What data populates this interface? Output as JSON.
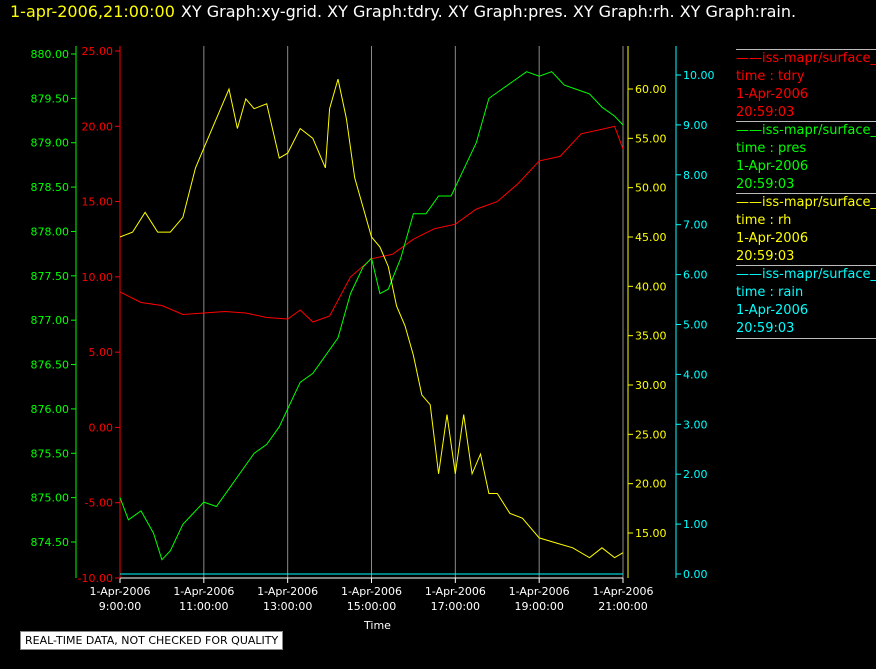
{
  "header": {
    "timestamp": "1-apr-2006,21:00:00",
    "titles": "XY Graph:xy-grid.  XY Graph:tdry.  XY Graph:pres.  XY Graph:rh.  XY Graph:rain."
  },
  "note": "REAL-TIME DATA, NOT CHECKED FOR QUALITY",
  "chart_data": {
    "type": "line",
    "xlabel": "Time",
    "x_ticks": [
      {
        "date": "1-Apr-2006",
        "time": "9:00:00"
      },
      {
        "date": "1-Apr-2006",
        "time": "11:00:00"
      },
      {
        "date": "1-Apr-2006",
        "time": "13:00:00"
      },
      {
        "date": "1-Apr-2006",
        "time": "15:00:00"
      },
      {
        "date": "1-Apr-2006",
        "time": "17:00:00"
      },
      {
        "date": "1-Apr-2006",
        "time": "19:00:00"
      },
      {
        "date": "1-Apr-2006",
        "time": "21:00:00"
      }
    ],
    "xlim_hours": [
      9,
      21
    ],
    "grid": "vertical",
    "axes": {
      "pres": {
        "color": "#00ff00",
        "ylim": [
          874.25,
          880.0
        ],
        "ticks": [
          "880.00",
          "879.50",
          "879.00",
          "878.50",
          "878.00",
          "877.50",
          "877.00",
          "876.50",
          "876.00",
          "875.50",
          "875.00",
          "874.50"
        ]
      },
      "tdry": {
        "color": "#ff0000",
        "ylim": [
          -10.0,
          25.0
        ],
        "ticks": [
          "25.00",
          "20.00",
          "15.00",
          "10.00",
          "5.00",
          "0.00",
          "-5.00",
          "-10.00"
        ]
      },
      "rh": {
        "color": "#ffff00",
        "ylim": [
          10.0,
          63.0
        ],
        "ticks": [
          "60.00",
          "55.00",
          "50.00",
          "45.00",
          "40.00",
          "35.00",
          "30.00",
          "25.00",
          "20.00",
          "15.00"
        ]
      },
      "rain": {
        "color": "#00ffff",
        "ylim": [
          0.0,
          10.0
        ],
        "ticks": [
          "10.00",
          "9.00",
          "8.00",
          "7.00",
          "6.00",
          "5.00",
          "4.00",
          "3.00",
          "2.00",
          "1.00",
          "0.00"
        ]
      }
    },
    "series": [
      {
        "key": "tdry",
        "color": "#ff0000",
        "x": [
          9.0,
          9.5,
          10.0,
          10.5,
          11.0,
          11.5,
          12.0,
          12.5,
          13.0,
          13.3,
          13.6,
          14.0,
          14.5,
          15.0,
          15.5,
          16.0,
          16.5,
          17.0,
          17.5,
          18.0,
          18.5,
          19.0,
          19.5,
          20.0,
          20.5,
          20.8,
          21.0
        ],
        "y": [
          9.0,
          8.3,
          8.1,
          7.5,
          7.6,
          7.7,
          7.6,
          7.3,
          7.2,
          7.8,
          7.0,
          7.4,
          10.0,
          11.2,
          11.5,
          12.5,
          13.2,
          13.5,
          14.5,
          15.0,
          16.2,
          17.7,
          18.0,
          19.5,
          19.8,
          20.0,
          18.5
        ]
      },
      {
        "key": "pres",
        "color": "#00ff00",
        "x": [
          9.0,
          9.2,
          9.5,
          9.8,
          10.0,
          10.2,
          10.5,
          10.8,
          11.0,
          11.3,
          11.6,
          11.9,
          12.2,
          12.5,
          12.8,
          13.0,
          13.3,
          13.6,
          13.9,
          14.2,
          14.5,
          14.8,
          15.0,
          15.2,
          15.4,
          15.7,
          16.0,
          16.3,
          16.6,
          16.9,
          17.2,
          17.5,
          17.8,
          18.1,
          18.4,
          18.7,
          19.0,
          19.3,
          19.6,
          19.9,
          20.2,
          20.5,
          20.8,
          21.0
        ],
        "y": [
          875.0,
          874.75,
          874.85,
          874.6,
          874.3,
          874.4,
          874.7,
          874.85,
          874.95,
          874.9,
          875.1,
          875.3,
          875.5,
          875.6,
          875.8,
          876.0,
          876.3,
          876.4,
          876.6,
          876.8,
          877.3,
          877.6,
          877.7,
          877.3,
          877.35,
          877.7,
          878.2,
          878.2,
          878.4,
          878.4,
          878.7,
          879.0,
          879.5,
          879.6,
          879.7,
          879.8,
          879.75,
          879.8,
          879.65,
          879.6,
          879.55,
          879.4,
          879.3,
          879.2
        ]
      },
      {
        "key": "rh",
        "color": "#ffff00",
        "x": [
          9.0,
          9.3,
          9.6,
          9.9,
          10.2,
          10.5,
          10.8,
          11.0,
          11.3,
          11.6,
          11.8,
          12.0,
          12.2,
          12.5,
          12.8,
          13.0,
          13.3,
          13.6,
          13.9,
          14.0,
          14.2,
          14.4,
          14.6,
          14.8,
          15.0,
          15.2,
          15.4,
          15.6,
          15.8,
          16.0,
          16.2,
          16.4,
          16.6,
          16.8,
          17.0,
          17.2,
          17.4,
          17.6,
          17.8,
          18.0,
          18.3,
          18.6,
          19.0,
          19.4,
          19.8,
          20.2,
          20.5,
          20.8,
          21.0
        ],
        "y": [
          45.0,
          45.5,
          47.5,
          45.5,
          45.5,
          47.0,
          52.0,
          54.0,
          57.0,
          60.0,
          56.0,
          59.0,
          58.0,
          58.5,
          53.0,
          53.5,
          56.0,
          55.0,
          52.0,
          58.0,
          61.0,
          57.0,
          51.0,
          48.0,
          45.0,
          44.0,
          42.0,
          38.0,
          36.0,
          33.0,
          29.0,
          28.0,
          21.0,
          27.0,
          21.0,
          27.0,
          21.0,
          23.0,
          19.0,
          19.0,
          17.0,
          16.5,
          14.5,
          14.0,
          13.5,
          12.5,
          13.5,
          12.5,
          13.0
        ]
      },
      {
        "key": "rain",
        "color": "#00ffff",
        "x": [
          9.0,
          21.0
        ],
        "y": [
          0.0,
          0.0
        ]
      }
    ],
    "legend": [
      {
        "line1": "iss-mapr/surface_",
        "line2": "time : tdry",
        "line3": "1-Apr-2006",
        "line4": "20:59:03",
        "color": "#ff0000"
      },
      {
        "line1": "iss-mapr/surface_",
        "line2": "time : pres",
        "line3": "1-Apr-2006",
        "line4": "20:59:03",
        "color": "#00ff00"
      },
      {
        "line1": "iss-mapr/surface_",
        "line2": "time : rh",
        "line3": "1-Apr-2006",
        "line4": "20:59:03",
        "color": "#ffff00"
      },
      {
        "line1": "iss-mapr/surface_",
        "line2": "time : rain",
        "line3": "1-Apr-2006",
        "line4": "20:59:03",
        "color": "#00ffff"
      }
    ]
  }
}
